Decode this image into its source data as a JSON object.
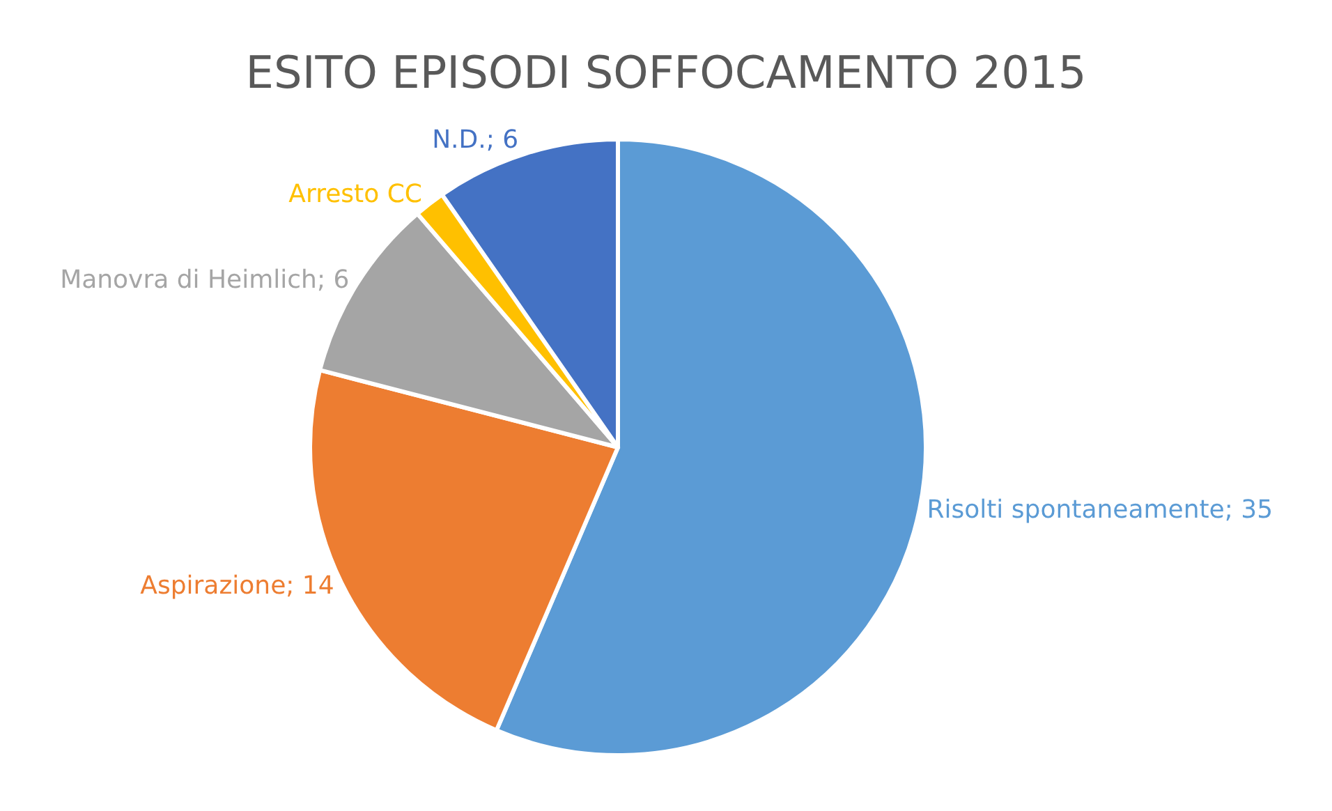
{
  "chart_data": {
    "type": "pie",
    "title": "ESITO EPISODI SOFFOCAMENTO 2015",
    "categories": [
      "Risolti spontaneamente",
      "Aspirazione",
      "Manovra di Heimlich",
      "Arresto CC",
      "N.D."
    ],
    "values": [
      35,
      14,
      6,
      1,
      6
    ],
    "value_labels": [
      "35",
      "14",
      "6",
      null,
      "6"
    ],
    "colors": [
      "#5b9bd5",
      "#ed7d31",
      "#a5a5a5",
      "#ffc000",
      "#4472c4"
    ],
    "legend": false
  }
}
